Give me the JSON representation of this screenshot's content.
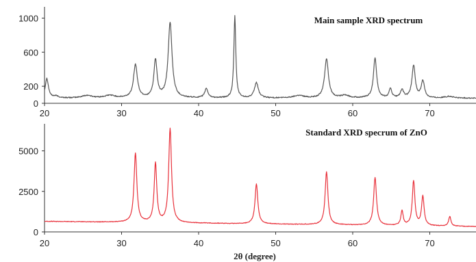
{
  "chart_data": [
    {
      "type": "line",
      "title": "Main sample XRD spectrum",
      "xlabel": "",
      "ylabel": "",
      "xlim": [
        20,
        76
      ],
      "ylim": [
        0,
        1100
      ],
      "yticks": [
        0,
        200,
        600,
        1000
      ],
      "xticks": [
        20,
        30,
        40,
        50,
        60,
        70
      ],
      "grid": false,
      "series": [
        {
          "color": "#555555",
          "baseline": 60,
          "peaks": [
            {
              "x": 20.3,
              "h": 230,
              "w": 0.25
            },
            {
              "x": 21.5,
              "h": 20,
              "w": 0.4
            },
            {
              "x": 25.5,
              "h": 30,
              "w": 0.8
            },
            {
              "x": 28.5,
              "h": 30,
              "w": 0.8
            },
            {
              "x": 31.8,
              "h": 390,
              "w": 0.3
            },
            {
              "x": 34.4,
              "h": 440,
              "w": 0.25
            },
            {
              "x": 36.3,
              "h": 880,
              "w": 0.3
            },
            {
              "x": 41.0,
              "h": 110,
              "w": 0.25
            },
            {
              "x": 44.7,
              "h": 960,
              "w": 0.15
            },
            {
              "x": 47.5,
              "h": 180,
              "w": 0.3
            },
            {
              "x": 53.0,
              "h": 30,
              "w": 0.8
            },
            {
              "x": 56.6,
              "h": 460,
              "w": 0.3
            },
            {
              "x": 59.0,
              "h": 30,
              "w": 0.6
            },
            {
              "x": 62.9,
              "h": 470,
              "w": 0.25
            },
            {
              "x": 64.9,
              "h": 110,
              "w": 0.2
            },
            {
              "x": 66.4,
              "h": 90,
              "w": 0.25
            },
            {
              "x": 67.9,
              "h": 380,
              "w": 0.25
            },
            {
              "x": 69.1,
              "h": 200,
              "w": 0.25
            },
            {
              "x": 72.5,
              "h": 20,
              "w": 0.6
            }
          ]
        }
      ]
    },
    {
      "type": "line",
      "title": "Standard XRD specrum of ZnO",
      "xlabel": "2θ (degree)",
      "ylabel": "",
      "xlim": [
        20,
        76
      ],
      "ylim": [
        0,
        6500
      ],
      "yticks": [
        0,
        2500,
        5000
      ],
      "xticks": [
        20,
        30,
        40,
        50,
        60,
        70
      ],
      "grid": false,
      "series": [
        {
          "color": "#e8303a",
          "baseline_start": 650,
          "baseline_end": 330,
          "peaks": [
            {
              "x": 31.8,
              "h": 4250,
              "w": 0.22
            },
            {
              "x": 34.4,
              "h": 3650,
              "w": 0.2
            },
            {
              "x": 36.3,
              "h": 5800,
              "w": 0.22
            },
            {
              "x": 47.5,
              "h": 2450,
              "w": 0.22
            },
            {
              "x": 56.6,
              "h": 3250,
              "w": 0.22
            },
            {
              "x": 62.9,
              "h": 2950,
              "w": 0.22
            },
            {
              "x": 66.4,
              "h": 900,
              "w": 0.18
            },
            {
              "x": 67.9,
              "h": 2750,
              "w": 0.2
            },
            {
              "x": 69.1,
              "h": 1800,
              "w": 0.2
            },
            {
              "x": 72.6,
              "h": 600,
              "w": 0.18
            }
          ]
        }
      ]
    }
  ]
}
